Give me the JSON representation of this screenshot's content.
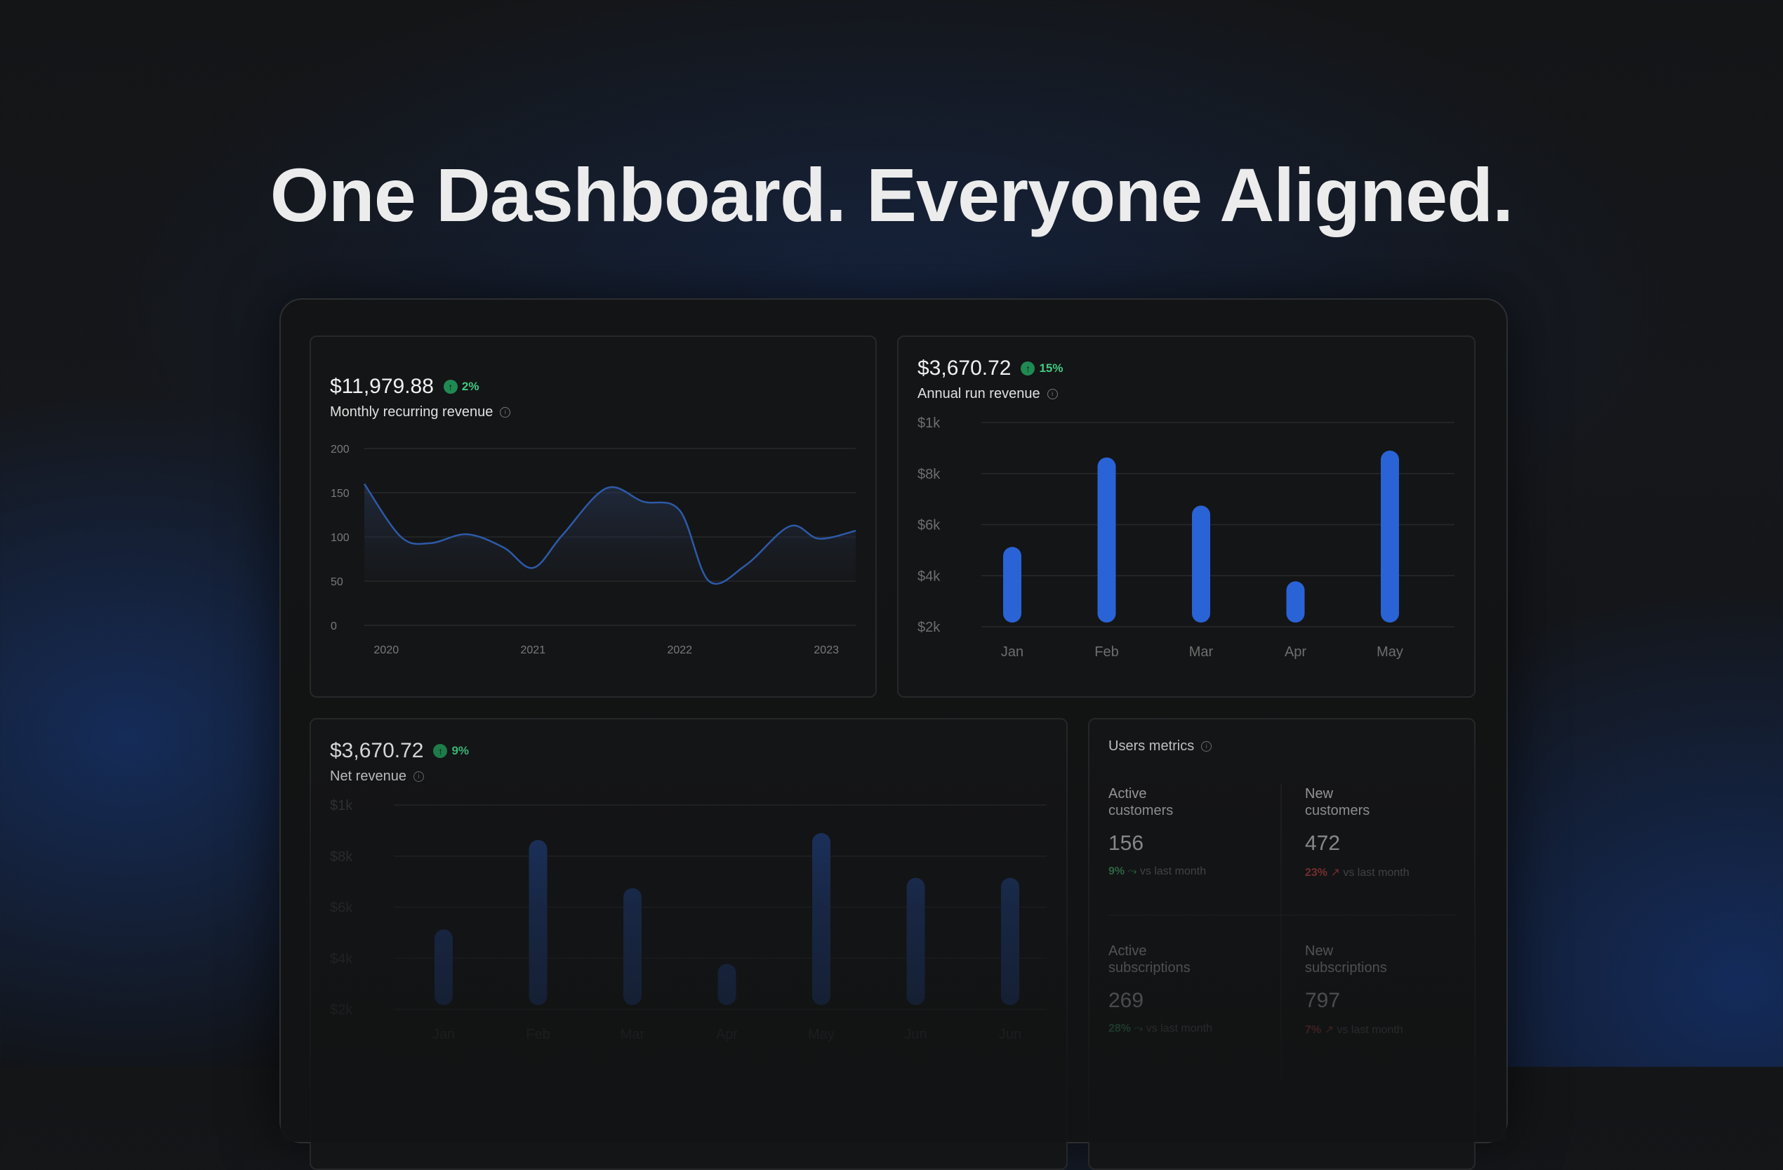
{
  "headline": "One Dashboard. Everyone Aligned.",
  "colors": {
    "accent_blue": "#2a63d6",
    "positive": "#3fcb82",
    "negative": "#d24848"
  },
  "mrr": {
    "value": "$11,979.88",
    "change": "2%",
    "label": "Monthly recurring revenue",
    "info_icon": "info-icon"
  },
  "arr": {
    "value": "$3,670.72",
    "change": "15%",
    "label": "Annual run revenue",
    "info_icon": "info-icon"
  },
  "net": {
    "value": "$3,670.72",
    "change": "9%",
    "label": "Net revenue",
    "info_icon": "info-icon"
  },
  "users": {
    "title": "Users metrics",
    "metrics": [
      {
        "label_line1": "Active",
        "label_line2": "customers",
        "value": "156",
        "pct": "9%",
        "trend": "up",
        "suffix": "vs last month"
      },
      {
        "label_line1": "New",
        "label_line2": "customers",
        "value": "472",
        "pct": "23%",
        "trend": "down",
        "suffix": "vs last month"
      },
      {
        "label_line1": "Active",
        "label_line2": "subscriptions",
        "value": "269",
        "pct": "28%",
        "trend": "up",
        "suffix": "vs last month"
      },
      {
        "label_line1": "New",
        "label_line2": "subscriptions",
        "value": "797",
        "pct": "7%",
        "trend": "down",
        "suffix": "vs last month"
      }
    ]
  },
  "chart_data": [
    {
      "type": "area",
      "title": "Monthly recurring revenue",
      "x_ticks": [
        "2020",
        "2021",
        "2022",
        "2023"
      ],
      "y_ticks": [
        "200",
        "150",
        "100",
        "50",
        "0"
      ],
      "ylim": [
        0,
        200
      ],
      "x": [
        2019.85,
        2020.1,
        2020.3,
        2020.55,
        2020.8,
        2021.0,
        2021.2,
        2021.5,
        2021.75,
        2022.0,
        2022.2,
        2022.45,
        2022.75,
        2022.95,
        2023.2
      ],
      "values": [
        160,
        100,
        93,
        103,
        88,
        65,
        102,
        155,
        140,
        130,
        50,
        68,
        112,
        98,
        107
      ],
      "grid": true
    },
    {
      "type": "bar",
      "title": "Annual run revenue",
      "categories": [
        "Jan",
        "Feb",
        "Mar",
        "Apr",
        "May"
      ],
      "y_ticks": [
        "$1k",
        "$8k",
        "$6k",
        "$4k",
        "$2k"
      ],
      "values": [
        0.44,
        0.96,
        0.68,
        0.24,
        1.0
      ],
      "grid": true
    },
    {
      "type": "bar",
      "title": "Net revenue",
      "categories": [
        "Jan",
        "Feb",
        "Mar",
        "Apr",
        "May",
        "Jun",
        "Jun"
      ],
      "y_ticks": [
        "$1k",
        "$8k",
        "$6k",
        "$4k",
        "$2k"
      ],
      "values": [
        0.44,
        0.96,
        0.68,
        0.24,
        1.0,
        0.74,
        0.74
      ],
      "grid": true
    }
  ]
}
